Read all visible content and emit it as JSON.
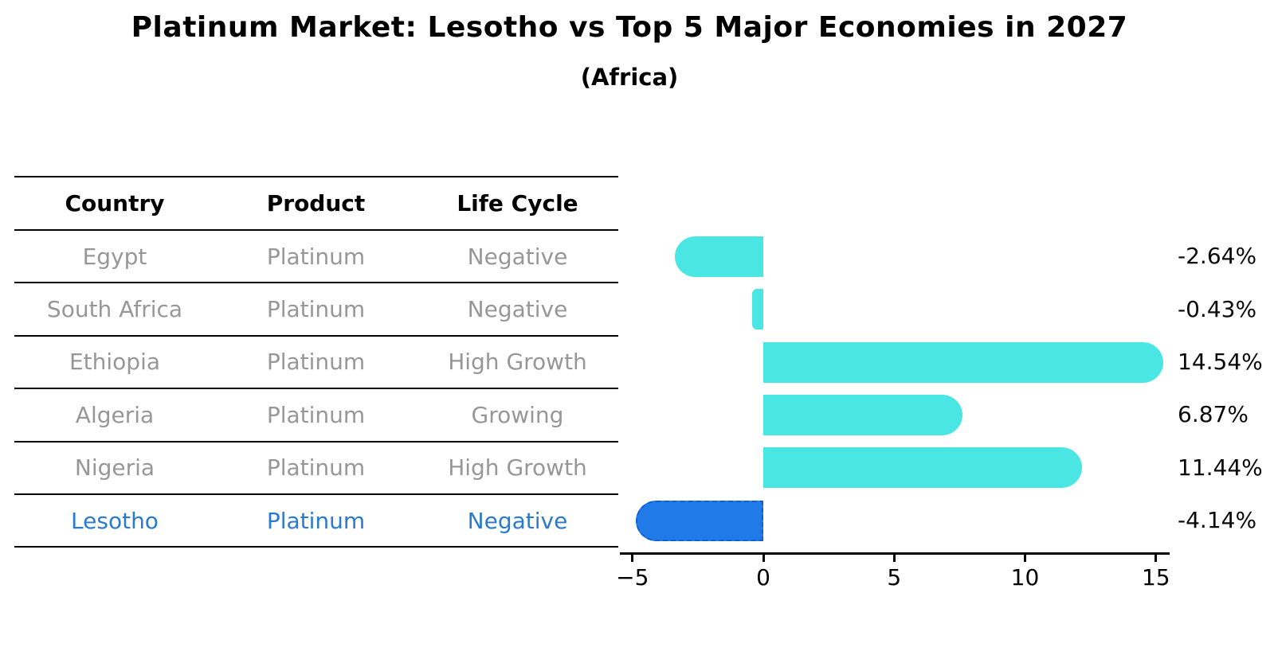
{
  "chart_data": {
    "type": "bar",
    "orientation": "horizontal",
    "title": "Platinum Market: Lesotho vs Top 5 Major Economies in 2027",
    "subtitle": "(Africa)",
    "categories": [
      "Egypt",
      "South Africa",
      "Ethiopia",
      "Algeria",
      "Nigeria",
      "Lesotho"
    ],
    "values": [
      -2.64,
      -0.43,
      14.54,
      6.87,
      11.44,
      -4.14
    ],
    "value_labels": [
      "-2.64%",
      "-0.43%",
      "14.54%",
      "6.87%",
      "11.44%",
      "-4.14%"
    ],
    "xticks": [
      -5,
      0,
      5,
      10,
      15
    ],
    "xtick_labels": [
      "−5",
      "0",
      "5",
      "10",
      "15"
    ],
    "xlim": [
      -5.5,
      15.5
    ],
    "grid": false,
    "legend": false,
    "bar_color": "#4ae6e4",
    "highlight_bar_color": "#207be8",
    "highlight_category": "Lesotho"
  },
  "table": {
    "headers": [
      "Country",
      "Product",
      "Life Cycle"
    ],
    "rows": [
      {
        "country": "Egypt",
        "product": "Platinum",
        "life_cycle": "Negative",
        "highlight": false
      },
      {
        "country": "South Africa",
        "product": "Platinum",
        "life_cycle": "Negative",
        "highlight": false
      },
      {
        "country": "Ethiopia",
        "product": "Platinum",
        "life_cycle": "High Growth",
        "highlight": false
      },
      {
        "country": "Algeria",
        "product": "Platinum",
        "life_cycle": "Growing",
        "highlight": false
      },
      {
        "country": "Nigeria",
        "product": "Platinum",
        "life_cycle": "High Growth",
        "highlight": false
      },
      {
        "country": "Lesotho",
        "product": "Platinum",
        "life_cycle": "Negative",
        "highlight": true
      }
    ]
  },
  "colors": {
    "row_text": "#979797",
    "highlight_text": "#2a7ace",
    "header_text": "#000000",
    "axis": "#000000",
    "value_label": "#0a0a0a"
  }
}
